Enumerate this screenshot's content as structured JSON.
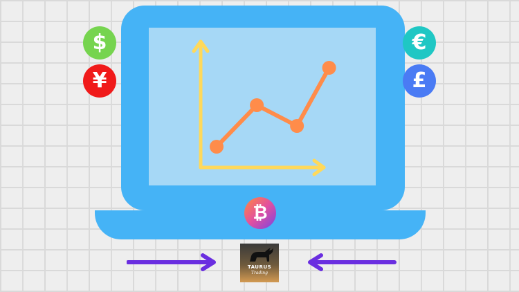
{
  "coins": {
    "dollar": {
      "symbol": "$",
      "color": "#76d44f"
    },
    "yen": {
      "symbol": "¥",
      "color": "#f01a1a"
    },
    "euro": {
      "symbol": "€",
      "color": "#1fc7c4"
    },
    "pound": {
      "symbol": "£",
      "color": "#4a7bf4"
    },
    "bitcoin": {
      "symbol": "₿"
    }
  },
  "screen_chart": {
    "axis_color": "#ffd95a",
    "line_color": "#ff8c4a",
    "points": [
      [
        0.0,
        0.0
      ],
      [
        1.0,
        0.5
      ],
      [
        2.0,
        0.25
      ],
      [
        2.8,
        0.95
      ]
    ]
  },
  "logo": {
    "title": "TAURUS",
    "subtitle": "Trading"
  },
  "colors": {
    "laptop": "#45b3f6",
    "arrows": "#6a2ee0"
  }
}
